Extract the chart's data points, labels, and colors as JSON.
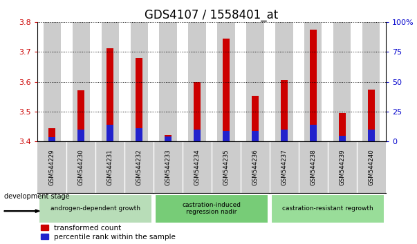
{
  "title": "GDS4107 / 1558401_at",
  "categories": [
    "GSM544229",
    "GSM544230",
    "GSM544231",
    "GSM544232",
    "GSM544233",
    "GSM544234",
    "GSM544235",
    "GSM544236",
    "GSM544237",
    "GSM544238",
    "GSM544239",
    "GSM544240"
  ],
  "red_values": [
    3.445,
    3.572,
    3.712,
    3.68,
    3.422,
    3.6,
    3.745,
    3.554,
    3.605,
    3.775,
    3.495,
    3.574
  ],
  "blue_values": [
    3.415,
    3.44,
    3.455,
    3.445,
    3.418,
    3.44,
    3.435,
    3.435,
    3.44,
    3.455,
    3.42,
    3.44
  ],
  "base": 3.4,
  "ylim_left": [
    3.4,
    3.8
  ],
  "ylim_right": [
    0,
    100
  ],
  "yticks_left": [
    3.4,
    3.5,
    3.6,
    3.7,
    3.8
  ],
  "yticks_right": [
    0,
    25,
    50,
    75,
    100
  ],
  "ytick_right_labels": [
    "0",
    "25",
    "50",
    "75",
    "100%"
  ],
  "red_color": "#cc0000",
  "blue_color": "#2222cc",
  "bar_bg_color": "#cccccc",
  "group_labels": [
    "androgen-dependent growth",
    "castration-induced\nregression nadir",
    "castration-resistant regrowth"
  ],
  "group_ranges": [
    [
      0,
      3
    ],
    [
      4,
      7
    ],
    [
      8,
      11
    ]
  ],
  "group_colors": [
    "#b8ddb8",
    "#77cc77",
    "#99dd99"
  ],
  "legend_labels": [
    "transformed count",
    "percentile rank within the sample"
  ],
  "dev_stage_label": "development stage",
  "title_fontsize": 12,
  "axis_color_left": "#cc0000",
  "axis_color_right": "#0000cc"
}
